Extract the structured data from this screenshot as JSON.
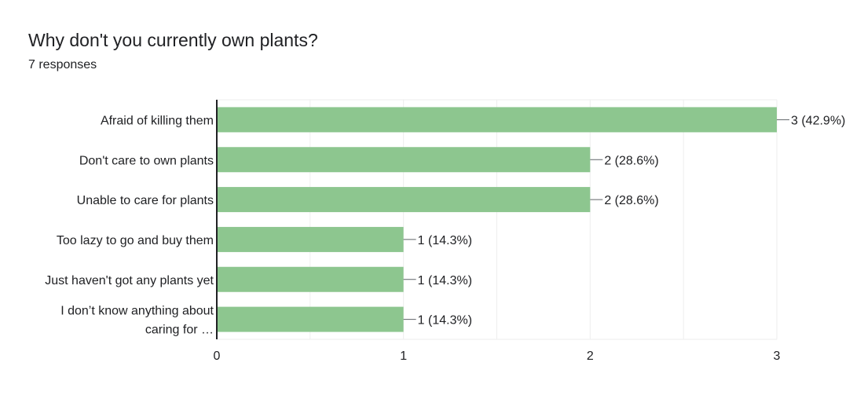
{
  "form": {
    "question": "Why don't you currently own plants?",
    "responses": "7 responses"
  },
  "colors": {
    "bar": "#8dc68f",
    "grid": "#eeeeee",
    "axis": "#202124",
    "text": "#202124"
  },
  "chart_data": {
    "type": "bar",
    "orientation": "horizontal",
    "title": "Why don't you currently own plants?",
    "subtitle": "7 responses",
    "categories": [
      [
        "Afraid of killing them"
      ],
      [
        "Don't care to own plants"
      ],
      [
        "Unable to care for plants"
      ],
      [
        "Too lazy to go and buy them"
      ],
      [
        "Just haven't got any plants yet"
      ],
      [
        "I don’t know anything about",
        "caring for …"
      ]
    ],
    "values": [
      3,
      2,
      2,
      1,
      1,
      1
    ],
    "data_labels": [
      "3 (42.9%)",
      "2 (28.6%)",
      "2 (28.6%)",
      "1 (14.3%)",
      "1 (14.3%)",
      "1 (14.3%)"
    ],
    "xlim": [
      0,
      3
    ],
    "xticks": [
      0,
      1,
      2,
      3
    ],
    "xlabel": "",
    "ylabel": "",
    "grid": true,
    "legend": "none"
  }
}
